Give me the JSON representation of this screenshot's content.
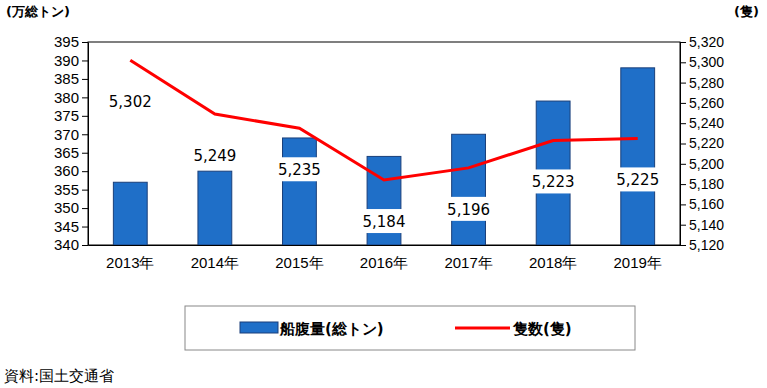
{
  "chart_data": {
    "type": "bar",
    "ylabel": "(万総トン)",
    "y2label": "(隻)",
    "categories": [
      "2013年",
      "2014年",
      "2015年",
      "2016年",
      "2017年",
      "2018年",
      "2019年"
    ],
    "series": [
      {
        "name": "船腹量(総トン)",
        "type": "bar",
        "color": "#1f6fc8",
        "values": [
          357,
          360,
          369,
          364,
          370,
          379,
          388
        ]
      },
      {
        "name": "隻数(隻)",
        "type": "line",
        "axis": "y2",
        "color": "#ff0000",
        "data_labels": true,
        "values": [
          5302,
          5249,
          5235,
          5184,
          5196,
          5223,
          5225
        ],
        "value_labels": [
          "5,302",
          "5,249",
          "5,235",
          "5,184",
          "5,196",
          "5,223",
          "5,225"
        ]
      }
    ],
    "ylim": [
      340,
      395
    ],
    "yticks": [
      340,
      345,
      350,
      355,
      360,
      365,
      370,
      375,
      380,
      385,
      390,
      395
    ],
    "y2lim": [
      5120,
      5320
    ],
    "y2ticks": [
      {
        "value": 5120,
        "label": "5,120"
      },
      {
        "value": 5140,
        "label": "5,140"
      },
      {
        "value": 5160,
        "label": "5,160"
      },
      {
        "value": 5180,
        "label": "5,180"
      },
      {
        "value": 5200,
        "label": "5,200"
      },
      {
        "value": 5220,
        "label": "5,220"
      },
      {
        "value": 5240,
        "label": "5,240"
      },
      {
        "value": 5260,
        "label": "5,260"
      },
      {
        "value": 5280,
        "label": "5,280"
      },
      {
        "value": 5300,
        "label": "5,300"
      },
      {
        "value": 5320,
        "label": "5,320"
      }
    ],
    "grid": false,
    "legend": "bottom",
    "annotations": [
      "資料:国土交通省"
    ]
  }
}
